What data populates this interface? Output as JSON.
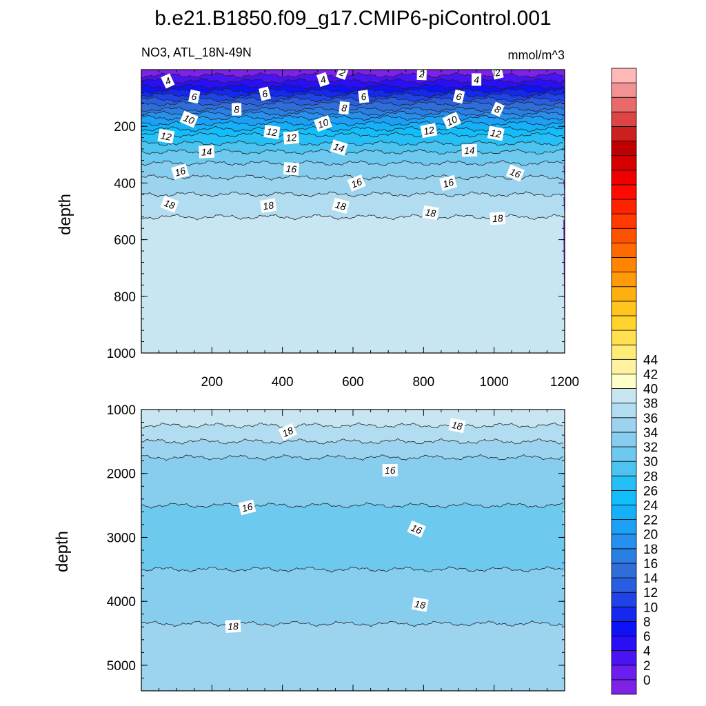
{
  "chart_data": {
    "type": "contour",
    "title": "b.e21.B1850.f09_g17.CMIP6-piControl.001",
    "panels": [
      {
        "name": "upper",
        "left_string": "NO3, ATL_18N-49N",
        "right_string": "mmol/m^3",
        "ylabel": "depth",
        "xlim": [
          0,
          1200
        ],
        "ylim": [
          1000,
          0
        ],
        "xticks": [
          200,
          400,
          600,
          800,
          1000,
          1200
        ],
        "yticks": [
          200,
          400,
          600,
          800,
          1000
        ],
        "band_edges": [
          {
            "depth": 20,
            "level": 0
          },
          {
            "depth": 40,
            "level": 2
          },
          {
            "depth": 60,
            "level": 3
          },
          {
            "depth": 75,
            "level": 4
          },
          {
            "depth": 90,
            "level": 5
          },
          {
            "depth": 105,
            "level": 6
          },
          {
            "depth": 120,
            "level": 7
          },
          {
            "depth": 140,
            "level": 8
          },
          {
            "depth": 155,
            "level": 9
          },
          {
            "depth": 170,
            "level": 10
          },
          {
            "depth": 190,
            "level": 11
          },
          {
            "depth": 210,
            "level": 12
          },
          {
            "depth": 230,
            "level": 13
          },
          {
            "depth": 260,
            "level": 14
          },
          {
            "depth": 290,
            "level": 15
          },
          {
            "depth": 330,
            "level": 16
          },
          {
            "depth": 380,
            "level": 17
          },
          {
            "depth": 440,
            "level": 18
          },
          {
            "depth": 520,
            "level": 19
          },
          {
            "depth": 1000,
            "level": 20
          }
        ],
        "contour_labels": [
          {
            "x": 75,
            "depth": 40,
            "text": "4"
          },
          {
            "x": 150,
            "depth": 95,
            "text": "6"
          },
          {
            "x": 270,
            "depth": 140,
            "text": "8"
          },
          {
            "x": 350,
            "depth": 85,
            "text": "6"
          },
          {
            "x": 135,
            "depth": 175,
            "text": "10"
          },
          {
            "x": 70,
            "depth": 235,
            "text": "12"
          },
          {
            "x": 185,
            "depth": 290,
            "text": "14"
          },
          {
            "x": 110,
            "depth": 360,
            "text": "16"
          },
          {
            "x": 80,
            "depth": 475,
            "text": "18"
          },
          {
            "x": 370,
            "depth": 220,
            "text": "12"
          },
          {
            "x": 425,
            "depth": 240,
            "text": "12"
          },
          {
            "x": 515,
            "depth": 35,
            "text": "4"
          },
          {
            "x": 570,
            "depth": 10,
            "text": "2"
          },
          {
            "x": 575,
            "depth": 135,
            "text": "8"
          },
          {
            "x": 630,
            "depth": 95,
            "text": "6"
          },
          {
            "x": 515,
            "depth": 190,
            "text": "10"
          },
          {
            "x": 560,
            "depth": 275,
            "text": "14"
          },
          {
            "x": 425,
            "depth": 350,
            "text": "16"
          },
          {
            "x": 360,
            "depth": 480,
            "text": "18"
          },
          {
            "x": 610,
            "depth": 400,
            "text": "16"
          },
          {
            "x": 565,
            "depth": 480,
            "text": "18"
          },
          {
            "x": 795,
            "depth": 15,
            "text": "2"
          },
          {
            "x": 815,
            "depth": 215,
            "text": "12"
          },
          {
            "x": 880,
            "depth": 180,
            "text": "10"
          },
          {
            "x": 900,
            "depth": 95,
            "text": "6"
          },
          {
            "x": 950,
            "depth": 35,
            "text": "4"
          },
          {
            "x": 1010,
            "depth": 10,
            "text": "2"
          },
          {
            "x": 1010,
            "depth": 140,
            "text": "8"
          },
          {
            "x": 1005,
            "depth": 225,
            "text": "12"
          },
          {
            "x": 930,
            "depth": 285,
            "text": "14"
          },
          {
            "x": 870,
            "depth": 400,
            "text": "16"
          },
          {
            "x": 1060,
            "depth": 365,
            "text": "16"
          },
          {
            "x": 820,
            "depth": 505,
            "text": "18"
          },
          {
            "x": 1010,
            "depth": 525,
            "text": "18"
          }
        ]
      },
      {
        "name": "lower",
        "ylabel": "depth",
        "xlim": [
          0,
          1200
        ],
        "ylim": [
          5400,
          1000
        ],
        "yticks": [
          1000,
          2000,
          3000,
          4000,
          5000
        ],
        "band_edges": [
          {
            "depth": 1250,
            "level": 20
          },
          {
            "depth": 1500,
            "level": 19
          },
          {
            "depth": 1750,
            "level": 18
          },
          {
            "depth": 2500,
            "level": 17
          },
          {
            "depth": 3500,
            "level": 16
          },
          {
            "depth": 4350,
            "level": 17
          },
          {
            "depth": 5400,
            "level": 18
          }
        ],
        "contour_labels": [
          {
            "x": 415,
            "depth": 1350,
            "text": "18"
          },
          {
            "x": 895,
            "depth": 1250,
            "text": "18"
          },
          {
            "x": 705,
            "depth": 1950,
            "text": "16"
          },
          {
            "x": 300,
            "depth": 2530,
            "text": "16"
          },
          {
            "x": 780,
            "depth": 2870,
            "text": "16"
          },
          {
            "x": 790,
            "depth": 4050,
            "text": "18"
          },
          {
            "x": 260,
            "depth": 4390,
            "text": "18"
          }
        ]
      }
    ],
    "colorbar": {
      "levels": [
        0,
        2,
        4,
        6,
        8,
        10,
        12,
        14,
        16,
        18,
        20,
        22,
        24,
        26,
        28,
        30,
        32,
        34,
        36,
        38,
        40,
        42,
        44
      ],
      "colors": [
        "#7e22e8",
        "#6a1ff0",
        "#4a14f2",
        "#2a0ef5",
        "#0f12f7",
        "#1428f0",
        "#1e44e8",
        "#2a5ee0",
        "#2f6ed8",
        "#2a7fe5",
        "#2690ee",
        "#1ca0f5",
        "#14b0f8",
        "#12bdfb",
        "#26bff5",
        "#4cc4ef",
        "#6dc9ee",
        "#86cdee",
        "#9cd3ef",
        "#b2dcf0",
        "#c8e6f2",
        "#fffec8",
        "#fff2a0",
        "#ffeb78",
        "#ffe050",
        "#ffd22e",
        "#ffc51c",
        "#ffb010",
        "#ff9a0a",
        "#ff8400",
        "#ff6a00",
        "#ff5200",
        "#ff3a00",
        "#ff2200",
        "#ff0a00",
        "#ee0000",
        "#d60000",
        "#c00000",
        "#cc2020",
        "#dd4545",
        "#e86a6a",
        "#f29292",
        "#ffb8b8"
      ]
    }
  }
}
